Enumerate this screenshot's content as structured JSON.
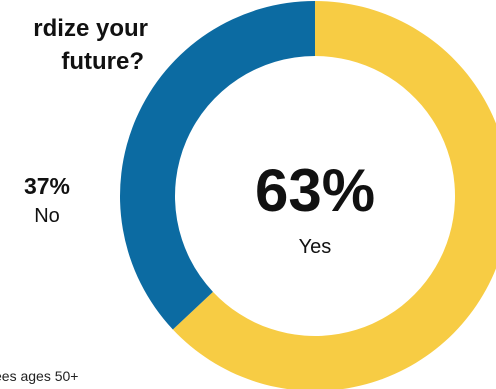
{
  "question": {
    "line1": "rdize your",
    "line2": "future?"
  },
  "chart_data": {
    "type": "pie",
    "categories": [
      "Yes",
      "No"
    ],
    "values": [
      63,
      37
    ],
    "value_labels": [
      "63%",
      "37%"
    ],
    "colors": [
      "#F7CC44",
      "#0C6BA2"
    ],
    "donut": true
  },
  "labels": {
    "yes_value": "63%",
    "yes_label": "Yes",
    "no_value": "37%",
    "no_label": "No"
  },
  "footnote": "ees ages 50+"
}
